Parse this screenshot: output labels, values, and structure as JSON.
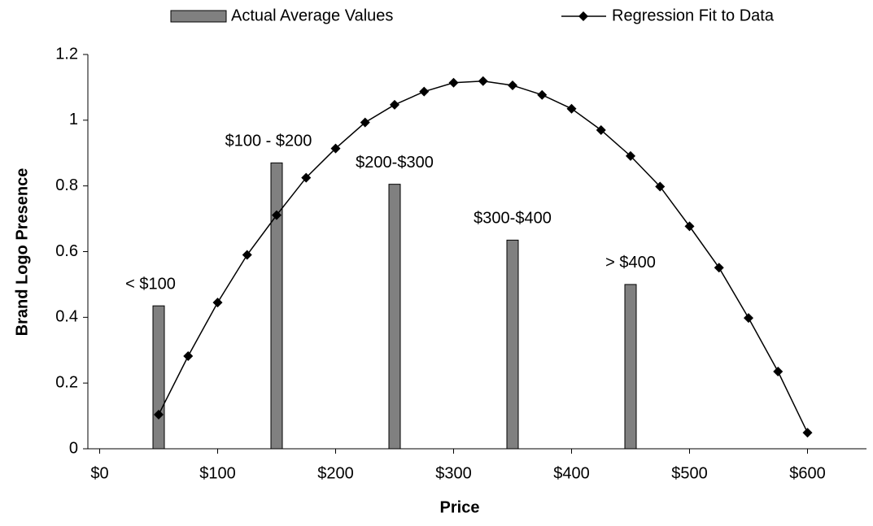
{
  "chart_data": {
    "type": "combo",
    "x_label": "Price",
    "y_label": "Brand Logo Presence",
    "xlim": [
      -10,
      650
    ],
    "ylim": [
      0,
      1.2
    ],
    "xticks": [
      {
        "value": 0,
        "label": "$0"
      },
      {
        "value": 100,
        "label": "$100"
      },
      {
        "value": 200,
        "label": "$200"
      },
      {
        "value": 300,
        "label": "$300"
      },
      {
        "value": 400,
        "label": "$400"
      },
      {
        "value": 500,
        "label": "$500"
      },
      {
        "value": 600,
        "label": "$600"
      }
    ],
    "yticks": [
      0,
      0.2,
      0.4,
      0.6,
      0.8,
      1,
      1.2
    ],
    "grid": false,
    "legend": "top",
    "series": [
      {
        "name": "Actual Average Values",
        "type": "bar",
        "color": "#808080",
        "categories": [
          "< $100",
          "$100 - $200",
          "$200-$300",
          "$300-$400",
          "> $400"
        ],
        "x": [
          50,
          150,
          250,
          350,
          450
        ],
        "values": [
          0.435,
          0.87,
          0.805,
          0.635,
          0.5
        ]
      },
      {
        "name": "Regression Fit to Data",
        "type": "line",
        "color": "#000000",
        "x": [
          50,
          75,
          100,
          125,
          150,
          175,
          200,
          225,
          250,
          275,
          300,
          325,
          350,
          375,
          400,
          425,
          450,
          475,
          500,
          525,
          550,
          575,
          600
        ],
        "values": [
          0.104,
          0.282,
          0.445,
          0.59,
          0.711,
          0.825,
          0.914,
          0.993,
          1.047,
          1.087,
          1.114,
          1.119,
          1.106,
          1.077,
          1.035,
          0.97,
          0.891,
          0.798,
          0.677,
          0.551,
          0.398,
          0.235,
          0.049
        ]
      }
    ]
  }
}
